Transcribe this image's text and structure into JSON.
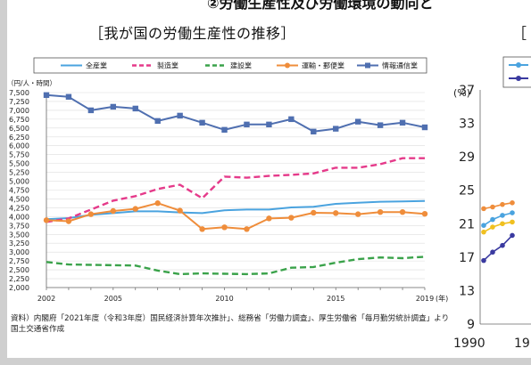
{
  "page": {
    "heading": "②労働生産性及び労働環境の動向と",
    "source_note": "資料）内閣府「2021年度（令和3年度）国民経済計算年次推計」、総務省「労働力調査」、厚生労働省「毎月勤労統計調査」より国土交通省作成"
  },
  "chart_data": [
    {
      "type": "line",
      "title": "［我が国の労働生産性の推移］",
      "ylabel": "（円/人・時間）",
      "xlabel": "(年)",
      "x": [
        2002,
        2003,
        2004,
        2005,
        2006,
        2007,
        2008,
        2009,
        2010,
        2011,
        2012,
        2013,
        2014,
        2015,
        2016,
        2017,
        2018,
        2019
      ],
      "x_tick_labels": [
        "2002",
        "2005",
        "2010",
        "2015",
        "2019"
      ],
      "ylim": [
        2000,
        7500
      ],
      "y_ticks": [
        "2,000",
        "2,250",
        "2,500",
        "2,750",
        "3,000",
        "3,250",
        "3,500",
        "3,750",
        "4,000",
        "4,250",
        "4,500",
        "4,750",
        "5,000",
        "5,250",
        "5,500",
        "5,750",
        "6,000",
        "6,250",
        "6,500",
        "6,750",
        "7,000",
        "7,250",
        "7,500"
      ],
      "grid": true,
      "legend_position": "top",
      "series": [
        {
          "name": "全産業",
          "color": "#4aa3df",
          "style": "solid",
          "marker": "none",
          "values": [
            3930,
            3960,
            4050,
            4100,
            4150,
            4150,
            4120,
            4100,
            4180,
            4200,
            4200,
            4260,
            4280,
            4360,
            4390,
            4420,
            4430,
            4440
          ]
        },
        {
          "name": "製造業",
          "color": "#e53a8a",
          "style": "dashed",
          "marker": "none",
          "values": [
            3850,
            3950,
            4200,
            4450,
            4580,
            4780,
            4900,
            4520,
            5130,
            5100,
            5150,
            5180,
            5220,
            5380,
            5380,
            5480,
            5650,
            5650
          ]
        },
        {
          "name": "建設業",
          "color": "#3aa24a",
          "style": "dashed",
          "marker": "none",
          "values": [
            2720,
            2650,
            2640,
            2630,
            2620,
            2480,
            2380,
            2400,
            2390,
            2380,
            2400,
            2560,
            2580,
            2700,
            2800,
            2850,
            2830,
            2870
          ]
        },
        {
          "name": "運輸・郵便業",
          "color": "#ef8d3b",
          "style": "solid",
          "marker": "circle",
          "values": [
            3900,
            3870,
            4070,
            4160,
            4220,
            4380,
            4170,
            3650,
            3700,
            3650,
            3950,
            3970,
            4110,
            4100,
            4070,
            4130,
            4130,
            4080
          ]
        },
        {
          "name": "情報通信業",
          "color": "#4f6fb0",
          "style": "solid",
          "marker": "square",
          "values": [
            7430,
            7380,
            7000,
            7100,
            7050,
            6700,
            6850,
            6650,
            6450,
            6600,
            6600,
            6750,
            6400,
            6480,
            6680,
            6580,
            6650,
            6520
          ]
        }
      ]
    },
    {
      "type": "line",
      "title": "［",
      "ylabel": "(%)",
      "x_tick_labels": [
        "1990",
        "19"
      ],
      "y_ticks": [
        "9",
        "13",
        "17",
        "21",
        "25",
        "29",
        "33",
        "37"
      ],
      "ylim": [
        9,
        37
      ],
      "series": [
        {
          "color": "#4aa3df",
          "marker": "circle",
          "values": [
            20.8,
            21.5,
            22.0,
            22.3
          ]
        },
        {
          "color": "#ef8d3b",
          "marker": "circle",
          "values": [
            22.8,
            23.0,
            23.3,
            23.5
          ]
        },
        {
          "color": "#f0c020",
          "marker": "circle",
          "values": [
            20.0,
            20.6,
            21.0,
            21.2
          ]
        },
        {
          "color": "#3a3aa0",
          "marker": "circle",
          "values": [
            16.6,
            17.6,
            18.4,
            19.6
          ]
        }
      ]
    }
  ]
}
